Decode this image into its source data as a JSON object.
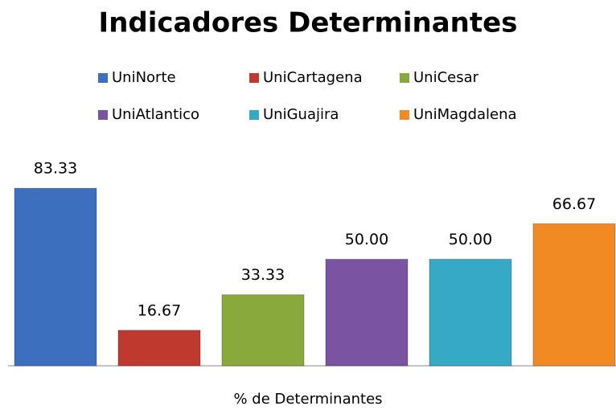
{
  "chart_data": {
    "type": "bar",
    "title": "Indicadores Determinantes",
    "x_label": "% de Determinantes",
    "ylim": [
      0,
      100
    ],
    "series": [
      {
        "name": "UniNorte",
        "color": "#3d6fbf",
        "values": [
          83.33
        ],
        "value_labels": [
          "83.33"
        ]
      },
      {
        "name": "UniCartagena",
        "color": "#c0392f",
        "values": [
          16.67
        ],
        "value_labels": [
          "16.67"
        ]
      },
      {
        "name": "UniCesar",
        "color": "#89a93c",
        "values": [
          33.33
        ],
        "value_labels": [
          "33.33"
        ]
      },
      {
        "name": "UniAtlantico",
        "color": "#7a54a2",
        "values": [
          50
        ],
        "value_labels": [
          "50.00"
        ]
      },
      {
        "name": "UniGuajira",
        "color": "#35a9c5",
        "values": [
          50
        ],
        "value_labels": [
          "50.00"
        ]
      },
      {
        "name": "UniMagdalena",
        "color": "#f28a24",
        "values": [
          66.67
        ],
        "value_labels": [
          "66.67"
        ]
      }
    ]
  }
}
